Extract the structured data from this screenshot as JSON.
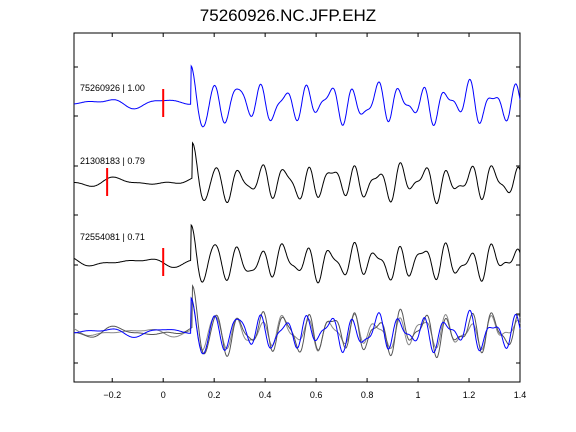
{
  "chart_data": {
    "type": "line",
    "title": "75260926.NC.JFP.EHZ",
    "xlim": [
      -0.35,
      1.4
    ],
    "x_ticks": [
      -0.2,
      0,
      0.2,
      0.4,
      0.6,
      0.8,
      1,
      1.2,
      1.4
    ],
    "x_tick_labels": [
      "−0.2",
      "0",
      "0.2",
      "0.4",
      "0.6",
      "0.8",
      "1",
      "1.2",
      "1.4"
    ],
    "grid": false,
    "traces": [
      {
        "label": "75260926 | 1.00",
        "color": "#0000ff",
        "pick_time": 0.0
      },
      {
        "label": "21308183 | 0.79",
        "color": "#000000",
        "pick_time": -0.22
      },
      {
        "label": "72554081 | 0.71",
        "color": "#000000",
        "pick_time": 0.0
      }
    ],
    "overlay": {
      "colors": [
        "#0000ff",
        "#555555",
        "#888888"
      ]
    },
    "pick_color": "#ff0000"
  }
}
